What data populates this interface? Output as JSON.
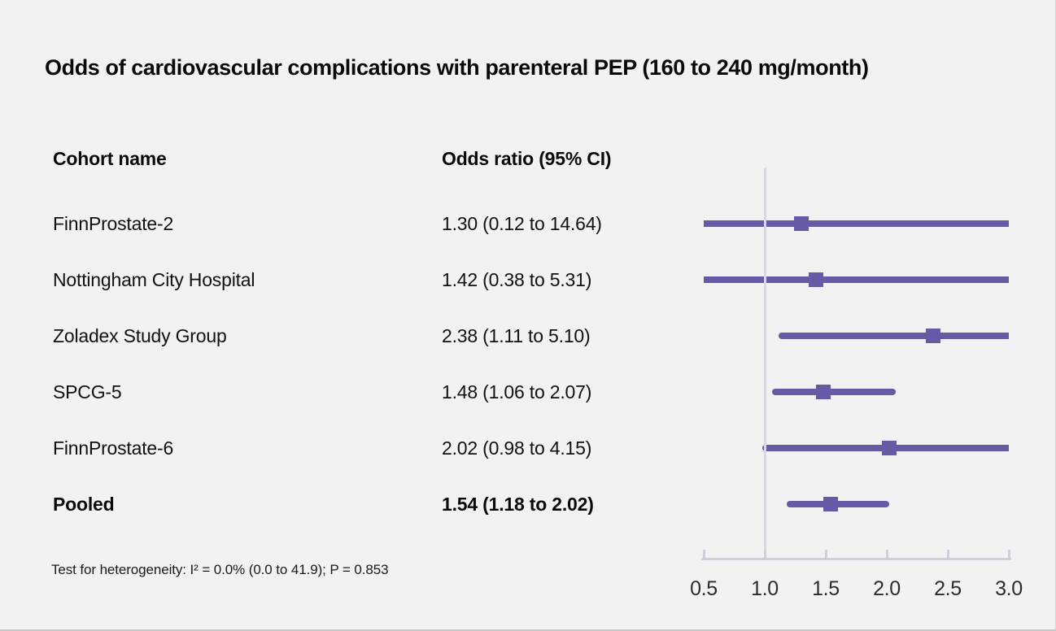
{
  "title": "Odds of cardiovascular complications with parenteral PEP (160 to 240 mg/month)",
  "table": {
    "cohort_header": "Cohort name",
    "odds_header": "Odds ratio (95% CI)"
  },
  "studies": [
    {
      "name": "FinnProstate-2",
      "or_text": "1.30 (0.12 to 14.64)",
      "pooled": false
    },
    {
      "name": "Nottingham City Hospital",
      "or_text": "1.42 (0.38 to 5.31)",
      "pooled": false
    },
    {
      "name": "Zoladex Study Group",
      "or_text": "2.38 (1.11 to 5.10)",
      "pooled": false
    },
    {
      "name": "SPCG-5",
      "or_text": "1.48 (1.06 to 2.07)",
      "pooled": false
    },
    {
      "name": "FinnProstate-6",
      "or_text": "2.02 (0.98 to 4.15)",
      "pooled": false
    },
    {
      "name": "Pooled",
      "or_text": "1.54 (1.18 to 2.02)",
      "pooled": true
    }
  ],
  "footnote": "Test for heterogeneity: I² = 0.0% (0.0 to 41.9); P = 0.853",
  "colors": {
    "background": "#f2f2f2",
    "marker": "#6659a6",
    "axis": "#ccd1da",
    "reference_line": "#d6dae2",
    "text": "#0a0a0a"
  },
  "chart_data": {
    "type": "scatter",
    "variant": "forest-plot",
    "title": "Odds of cardiovascular complications with parenteral PEP (160 to 240 mg/month)",
    "xlabel": "Odds ratio",
    "xlim": [
      0.5,
      3.0
    ],
    "x_ticks": [
      "0.5",
      "1.0",
      "1.5",
      "2.0",
      "2.5",
      "3.0"
    ],
    "reference_line_x": 1.0,
    "grid": false,
    "legend": "none",
    "points": [
      {
        "label": "FinnProstate-2",
        "estimate": 1.3,
        "ci_low": 0.12,
        "ci_high": 14.64,
        "pooled": false
      },
      {
        "label": "Nottingham City Hospital",
        "estimate": 1.42,
        "ci_low": 0.38,
        "ci_high": 5.31,
        "pooled": false
      },
      {
        "label": "Zoladex Study Group",
        "estimate": 2.38,
        "ci_low": 1.11,
        "ci_high": 5.1,
        "pooled": false
      },
      {
        "label": "SPCG-5",
        "estimate": 1.48,
        "ci_low": 1.06,
        "ci_high": 2.07,
        "pooled": false
      },
      {
        "label": "FinnProstate-6",
        "estimate": 2.02,
        "ci_low": 0.98,
        "ci_high": 4.15,
        "pooled": false
      },
      {
        "label": "Pooled",
        "estimate": 1.54,
        "ci_low": 1.18,
        "ci_high": 2.02,
        "pooled": true
      }
    ],
    "heterogeneity_note": "Test for heterogeneity: I² = 0.0% (0.0 to 41.9); P = 0.853"
  }
}
